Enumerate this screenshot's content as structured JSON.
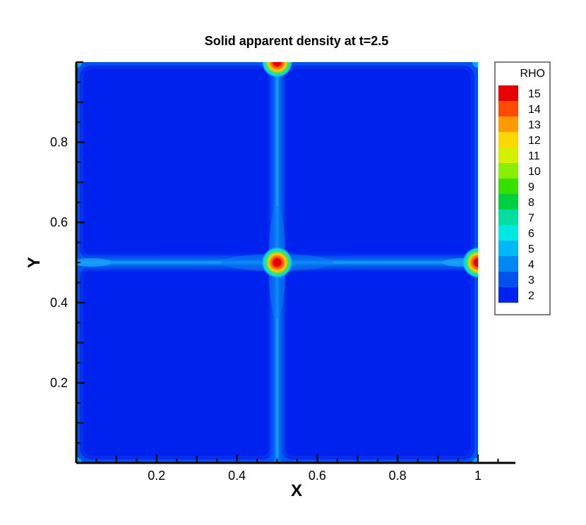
{
  "chart_data": {
    "type": "heatmap",
    "title": "Solid apparent density at t=2.5",
    "xlabel": "X",
    "ylabel": "Y",
    "xlim": [
      0.0,
      1.05
    ],
    "ylim": [
      0.0,
      1.0
    ],
    "x_ticks": [
      0.2,
      0.4,
      0.6,
      0.8,
      1.0
    ],
    "x_tick_labels": [
      "0.2",
      "0.4",
      "0.6",
      "0.8",
      "1"
    ],
    "y_ticks": [
      0.2,
      0.4,
      0.6,
      0.8
    ],
    "y_tick_labels": [
      "0.2",
      "0.4",
      "0.6",
      "0.8"
    ],
    "domain": {
      "x": [
        0.0,
        1.0
      ],
      "y": [
        0.0,
        1.0
      ]
    },
    "legend": {
      "title": "RHO",
      "placement": "right",
      "levels": [
        15,
        14,
        13,
        12,
        11,
        10,
        9,
        8,
        7,
        6,
        5,
        4,
        3,
        2
      ],
      "level_labels": [
        "15",
        "14",
        "13",
        "12",
        "11",
        "10",
        "9",
        "8",
        "7",
        "6",
        "5",
        "4",
        "3",
        "2"
      ],
      "colors": [
        "#e60000",
        "#ff4a00",
        "#ff9a00",
        "#ffd700",
        "#d4f000",
        "#8aee00",
        "#35e000",
        "#00d040",
        "#00dea0",
        "#00e8e0",
        "#00b8f8",
        "#0088f2",
        "#0052ee",
        "#0022ee"
      ]
    },
    "field": {
      "background_level": 2,
      "ridge_lines": [
        {
          "orientation": "vertical",
          "x": 0.5,
          "level": 3
        },
        {
          "orientation": "horizontal",
          "y": 0.5,
          "level": 3
        }
      ],
      "peaks": [
        {
          "x": 0.5,
          "y": 0.5,
          "level": 15
        },
        {
          "x": 0.5,
          "y": 1.0,
          "level": 15
        },
        {
          "x": 1.0,
          "y": 0.5,
          "level": 15
        }
      ],
      "edge_level": 3
    },
    "grid": false
  }
}
